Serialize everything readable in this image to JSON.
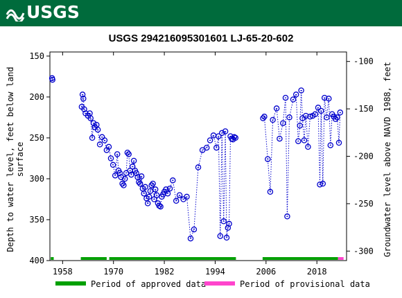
{
  "header": {
    "logo_text": "USGS",
    "logo_icon": "usgs-wave-icon",
    "background_color": "#006b3c"
  },
  "chart_data": {
    "type": "scatter",
    "title": "USGS 294216095301601 LJ-65-20-602",
    "ylabel_left": "Depth to water level, feet below land surface",
    "ylabel_left_lines": [
      "Depth to water level, feet below land",
      "surface"
    ],
    "ylabel_right": "Groundwater level above NAVD 1988, feet",
    "xlim": [
      1955,
      2025
    ],
    "ylim_left": [
      400,
      145
    ],
    "ylim_right": [
      -310,
      -90
    ],
    "y_inverted": true,
    "x_ticks": [
      1958,
      1970,
      1982,
      1994,
      2006,
      2018
    ],
    "y_ticks_left": [
      150,
      200,
      250,
      300,
      350,
      400
    ],
    "y_ticks_right": [
      -100,
      -150,
      -200,
      -250,
      -300
    ],
    "grid": false,
    "marker_color": "#0000cc",
    "line_style": "dotted",
    "series": [
      {
        "x": [
          1955.5,
          1955.6
        ],
        "y": [
          177,
          179
        ]
      },
      {
        "x": [
          1962.5,
          1962.7,
          1962.9,
          1963.1,
          1963.4,
          1964.0,
          1964.4,
          1964.6,
          1965.0,
          1965.3,
          1965.6,
          1966.0,
          1966.3,
          1966.8,
          1967.3,
          1967.9,
          1968.4,
          1968.9,
          1969.4,
          1969.9,
          1970.4,
          1970.9,
          1971.2,
          1971.5,
          1971.8,
          1972.1,
          1972.4,
          1972.7,
          1973.0,
          1973.3,
          1973.6,
          1973.9,
          1974.2,
          1974.5,
          1974.8,
          1975.1,
          1975.4,
          1975.7,
          1976.0,
          1976.3,
          1976.6,
          1976.9,
          1977.2,
          1977.5,
          1977.8,
          1978.1,
          1978.4,
          1978.7,
          1979.0,
          1979.3,
          1979.6,
          1979.9,
          1980.2,
          1980.5,
          1980.8,
          1981.1,
          1981.4,
          1981.7,
          1982.0,
          1982.4,
          1982.8,
          1983.3,
          1984.0,
          1984.8,
          1985.6,
          1986.5,
          1987.3,
          1988.2,
          1989.0,
          1990.0,
          1991.0,
          1992.0,
          1992.8,
          1993.6,
          1994.3,
          1994.8,
          1995.2,
          1995.6,
          1996.0,
          1996.4,
          1996.7,
          1997.0,
          1997.3,
          1997.6,
          1997.9,
          1998.2,
          1998.5,
          1998.8
        ],
        "y": [
          212,
          197,
          202,
          215,
          220,
          223,
          220,
          226,
          250,
          232,
          237,
          234,
          240,
          258,
          249,
          253,
          265,
          261,
          275,
          283,
          296,
          270,
          290,
          293,
          298,
          306,
          308,
          300,
          293,
          268,
          270,
          290,
          295,
          285,
          278,
          290,
          293,
          298,
          304,
          306,
          297,
          312,
          318,
          310,
          324,
          330,
          322,
          315,
          308,
          306,
          325,
          313,
          320,
          330,
          333,
          334,
          322,
          319,
          316,
          313,
          318,
          312,
          302,
          327,
          320,
          325,
          322,
          373,
          362,
          286,
          265,
          262,
          253,
          247,
          262,
          248,
          370,
          244,
          352,
          242,
          372,
          360,
          355,
          248,
          251,
          252,
          249,
          250
        ]
      },
      {
        "x": [
          2005.3,
          2005.6,
          2006.4,
          2007.0,
          2007.6,
          2008.5,
          2009.2,
          2010.0,
          2010.6,
          2011.0,
          2011.5,
          2012.4,
          2013.1,
          2013.6,
          2014.0,
          2014.3,
          2014.6,
          2015.0,
          2015.4,
          2015.9,
          2016.4,
          2017.0,
          2017.6,
          2018.3,
          2018.7,
          2019.0,
          2019.4,
          2019.8,
          2020.3,
          2020.8,
          2021.2,
          2021.6,
          2022.0,
          2022.4,
          2022.8,
          2023.2,
          2023.5
        ],
        "y": [
          226,
          224,
          276,
          316,
          228,
          214,
          251,
          232,
          201,
          346,
          225,
          203,
          197,
          254,
          235,
          192,
          226,
          253,
          223,
          261,
          224,
          223,
          221,
          213,
          307,
          217,
          306,
          201,
          225,
          202,
          259,
          221,
          224,
          227,
          225,
          256,
          219
        ]
      }
    ],
    "approval_bars": [
      {
        "status": "approved",
        "x_start": 1955.2,
        "x_end": 1955.9
      },
      {
        "status": "approved",
        "x_start": 1962.3,
        "x_end": 1968.4
      },
      {
        "status": "approved",
        "x_start": 1969.0,
        "x_end": 1998.9
      },
      {
        "status": "approved",
        "x_start": 2005.2,
        "x_end": 2023.0
      },
      {
        "status": "provisional",
        "x_start": 2023.0,
        "x_end": 2024.3
      }
    ],
    "legend": {
      "placement": "bottom",
      "entries": [
        {
          "label": "Period of approved data",
          "color": "#00a000"
        },
        {
          "label": "Period of provisional data",
          "color": "#ff44cc"
        }
      ]
    }
  }
}
